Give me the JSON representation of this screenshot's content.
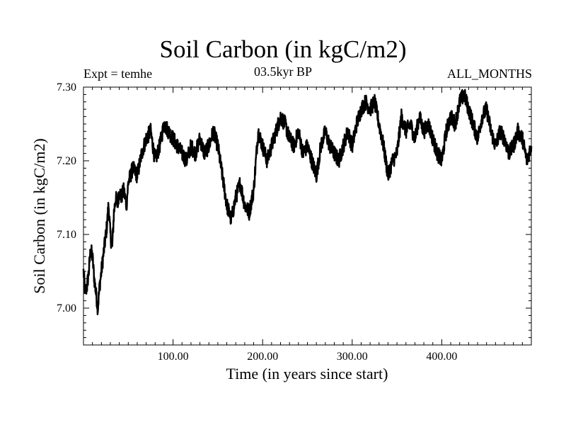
{
  "chart_data": {
    "type": "line",
    "title": "Soil Carbon (in kgC/m2)",
    "subtitle": "03.5kyr BP",
    "left_label": "Expt = temhe",
    "right_label": "ALL_MONTHS",
    "xlabel": "Time (in years since start)",
    "ylabel": "Soil Carbon (in kgC/m2)",
    "xlim": [
      0,
      500
    ],
    "ylim": [
      6.95,
      7.3
    ],
    "x_ticks": [
      100,
      200,
      300,
      400
    ],
    "x_tick_labels": [
      "100.00",
      "200.00",
      "300.00",
      "400.00"
    ],
    "y_ticks": [
      7.0,
      7.1,
      7.2,
      7.3
    ],
    "y_tick_labels": [
      "7.00",
      "7.10",
      "7.20",
      "7.30"
    ],
    "series": [
      {
        "name": "Soil Carbon",
        "x": [
          0,
          2,
          4,
          6,
          8,
          10,
          12,
          14,
          16,
          18,
          20,
          22,
          24,
          26,
          28,
          30,
          32,
          34,
          36,
          38,
          40,
          42,
          45,
          48,
          50,
          55,
          60,
          65,
          70,
          75,
          80,
          85,
          90,
          95,
          100,
          105,
          110,
          115,
          120,
          125,
          130,
          135,
          140,
          145,
          150,
          155,
          160,
          165,
          170,
          175,
          180,
          185,
          190,
          195,
          200,
          205,
          210,
          215,
          220,
          225,
          230,
          235,
          240,
          245,
          250,
          255,
          260,
          265,
          270,
          275,
          280,
          285,
          290,
          295,
          300,
          305,
          310,
          315,
          320,
          325,
          330,
          335,
          340,
          345,
          350,
          355,
          360,
          365,
          370,
          375,
          380,
          385,
          390,
          395,
          400,
          405,
          410,
          415,
          420,
          425,
          430,
          435,
          440,
          445,
          450,
          455,
          460,
          465,
          470,
          475,
          480,
          485,
          490,
          495,
          500
        ],
        "values": [
          7.05,
          7.02,
          7.03,
          7.05,
          7.08,
          7.07,
          7.04,
          7.02,
          7.0,
          7.03,
          7.05,
          7.07,
          7.09,
          7.11,
          7.14,
          7.1,
          7.08,
          7.13,
          7.15,
          7.14,
          7.16,
          7.15,
          7.16,
          7.14,
          7.17,
          7.19,
          7.18,
          7.21,
          7.23,
          7.24,
          7.2,
          7.22,
          7.25,
          7.24,
          7.23,
          7.22,
          7.21,
          7.2,
          7.22,
          7.21,
          7.23,
          7.21,
          7.22,
          7.24,
          7.22,
          7.18,
          7.14,
          7.12,
          7.15,
          7.17,
          7.14,
          7.13,
          7.16,
          7.24,
          7.22,
          7.2,
          7.22,
          7.24,
          7.26,
          7.25,
          7.23,
          7.22,
          7.24,
          7.21,
          7.22,
          7.2,
          7.18,
          7.22,
          7.24,
          7.22,
          7.21,
          7.2,
          7.22,
          7.24,
          7.22,
          7.25,
          7.27,
          7.28,
          7.27,
          7.28,
          7.25,
          7.22,
          7.18,
          7.2,
          7.21,
          7.26,
          7.24,
          7.25,
          7.23,
          7.26,
          7.24,
          7.25,
          7.23,
          7.21,
          7.2,
          7.24,
          7.26,
          7.25,
          7.28,
          7.29,
          7.27,
          7.25,
          7.23,
          7.26,
          7.27,
          7.24,
          7.22,
          7.24,
          7.23,
          7.21,
          7.22,
          7.24,
          7.23,
          7.2,
          7.22
        ]
      }
    ]
  }
}
